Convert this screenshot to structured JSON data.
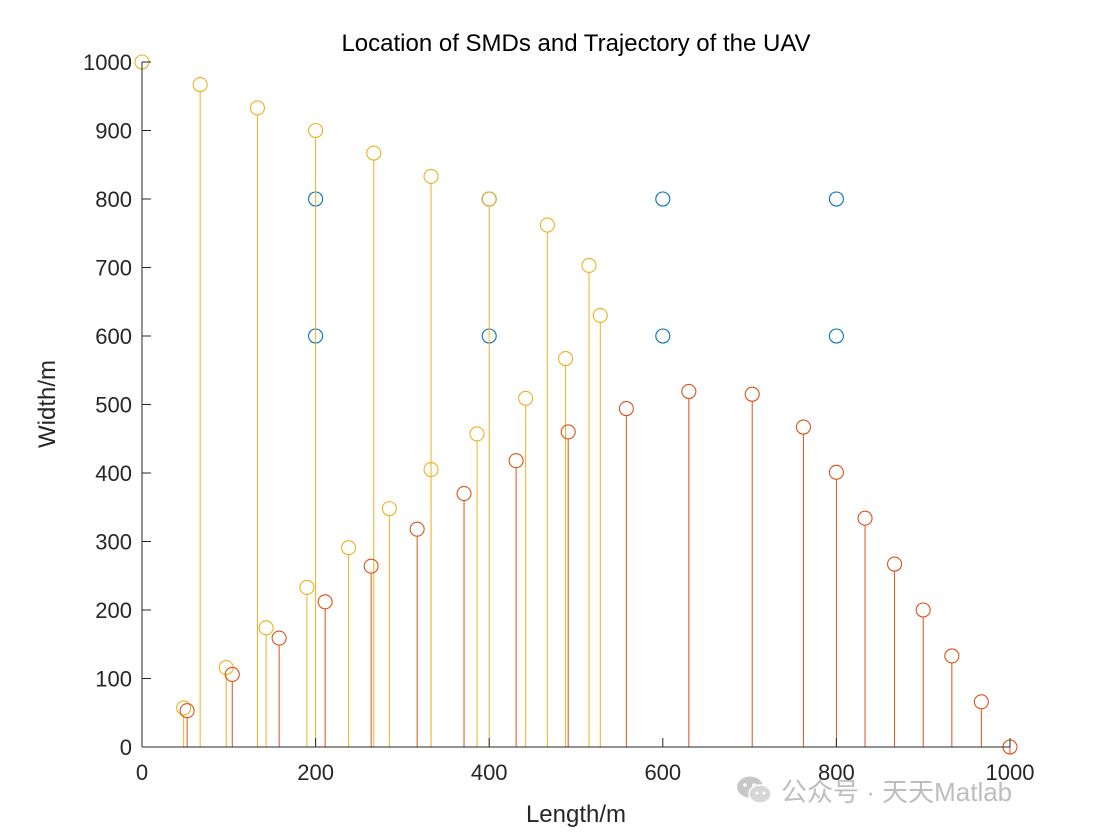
{
  "chart_data": {
    "type": "scatter",
    "title": "Location of SMDs and Trajectory of the UAV",
    "xlabel": "Length/m",
    "ylabel": "Width/m",
    "xlim": [
      0,
      1000
    ],
    "ylim": [
      0,
      1000
    ],
    "xticks": [
      0,
      200,
      400,
      600,
      800,
      1000
    ],
    "yticks": [
      0,
      100,
      200,
      300,
      400,
      500,
      600,
      700,
      800,
      900,
      1000
    ],
    "grid": false,
    "legend": "none",
    "series": [
      {
        "style": "circle",
        "color": "#0072BD",
        "points": [
          [
            200,
            800
          ],
          [
            400,
            800
          ],
          [
            600,
            800
          ],
          [
            800,
            800
          ],
          [
            200,
            600
          ],
          [
            400,
            600
          ],
          [
            600,
            600
          ],
          [
            800,
            600
          ]
        ]
      },
      {
        "style": "stem",
        "color": "#EDB120",
        "points": [
          [
            0,
            1000
          ],
          [
            67,
            967
          ],
          [
            133,
            933
          ],
          [
            200,
            900
          ],
          [
            267,
            867
          ],
          [
            333,
            833
          ],
          [
            400,
            800
          ],
          [
            467,
            762
          ],
          [
            515,
            703
          ],
          [
            528,
            630
          ],
          [
            48,
            57
          ],
          [
            97,
            116
          ],
          [
            143,
            174
          ],
          [
            190,
            233
          ],
          [
            238,
            291
          ],
          [
            285,
            348
          ],
          [
            333,
            405
          ],
          [
            386,
            457
          ],
          [
            442,
            509
          ],
          [
            488,
            567
          ]
        ]
      },
      {
        "style": "stem",
        "color": "#D95319",
        "points": [
          [
            52,
            53
          ],
          [
            104,
            106
          ],
          [
            158,
            159
          ],
          [
            211,
            212
          ],
          [
            264,
            264
          ],
          [
            317,
            318
          ],
          [
            371,
            370
          ],
          [
            431,
            418
          ],
          [
            491,
            460
          ],
          [
            558,
            494
          ],
          [
            630,
            519
          ],
          [
            703,
            515
          ],
          [
            762,
            467
          ],
          [
            800,
            401
          ],
          [
            833,
            334
          ],
          [
            867,
            267
          ],
          [
            900,
            200
          ],
          [
            933,
            133
          ],
          [
            967,
            66
          ],
          [
            1000,
            0
          ]
        ]
      }
    ]
  },
  "watermark": {
    "text": "公众号 · 天天Matlab",
    "icon": "wechat-icon"
  }
}
